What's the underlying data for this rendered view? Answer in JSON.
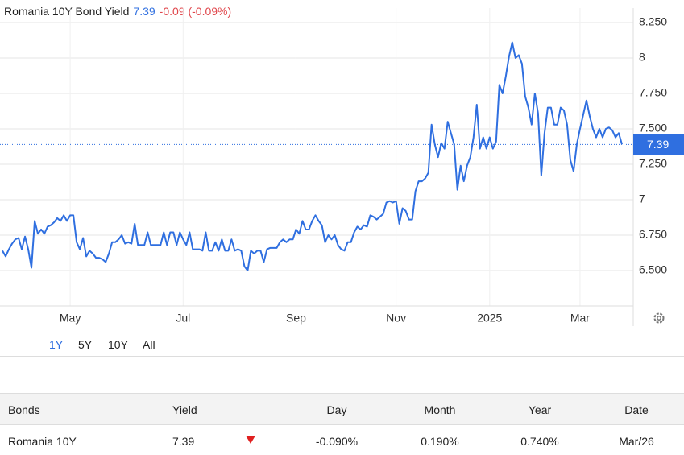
{
  "chart_data": {
    "type": "line",
    "title": "Romania 10Y Bond Yield",
    "price": "7.39",
    "change": "-0.09 (-0.09%)",
    "color": "#2f6fe0",
    "grid": true,
    "ylim": [
      6.25,
      8.352
    ],
    "yticks": [
      {
        "value": 8.25,
        "label": "8.250"
      },
      8,
      {
        "value": 7.75,
        "label": "7.750"
      },
      {
        "value": 7.5,
        "label": "7.500"
      },
      {
        "value": 7.25,
        "label": "7.250"
      },
      7,
      {
        "value": 6.75,
        "label": "6.750"
      },
      {
        "value": 6.5,
        "label": "6.500"
      }
    ],
    "xlim": [
      0,
      192
    ],
    "xticks": [
      {
        "value": 21,
        "label": "May"
      },
      {
        "value": 56,
        "label": "Jul"
      },
      {
        "value": 91,
        "label": "Sep"
      },
      {
        "value": 122,
        "label": "Nov"
      },
      {
        "value": 151,
        "label": "2025"
      },
      {
        "value": 179,
        "label": "Mar"
      }
    ],
    "values": [
      6.64,
      6.6,
      6.65,
      6.69,
      6.72,
      6.73,
      6.65,
      6.74,
      6.65,
      6.52,
      6.85,
      6.76,
      6.79,
      6.76,
      6.81,
      6.82,
      6.84,
      6.87,
      6.85,
      6.89,
      6.85,
      6.89,
      6.89,
      6.7,
      6.65,
      6.73,
      6.6,
      6.64,
      6.62,
      6.59,
      6.59,
      6.58,
      6.56,
      6.62,
      6.7,
      6.7,
      6.72,
      6.75,
      6.69,
      6.7,
      6.69,
      6.83,
      6.68,
      6.68,
      6.68,
      6.77,
      6.68,
      6.68,
      6.68,
      6.68,
      6.77,
      6.68,
      6.77,
      6.77,
      6.68,
      6.77,
      6.72,
      6.68,
      6.77,
      6.65,
      6.65,
      6.65,
      6.64,
      6.77,
      6.64,
      6.64,
      6.7,
      6.64,
      6.72,
      6.64,
      6.64,
      6.72,
      6.64,
      6.65,
      6.64,
      6.53,
      6.5,
      6.64,
      6.62,
      6.64,
      6.64,
      6.56,
      6.65,
      6.66,
      6.66,
      6.66,
      6.7,
      6.72,
      6.7,
      6.72,
      6.72,
      6.79,
      6.76,
      6.85,
      6.79,
      6.79,
      6.85,
      6.89,
      6.85,
      6.82,
      6.7,
      6.75,
      6.72,
      6.75,
      6.68,
      6.65,
      6.64,
      6.7,
      6.7,
      6.77,
      6.81,
      6.79,
      6.82,
      6.81,
      6.89,
      6.88,
      6.86,
      6.88,
      6.9,
      6.98,
      6.99,
      6.98,
      6.99,
      6.83,
      6.94,
      6.92,
      6.86,
      6.86,
      7.06,
      7.13,
      7.13,
      7.15,
      7.19,
      7.53,
      7.39,
      7.3,
      7.4,
      7.36,
      7.55,
      7.47,
      7.39,
      7.07,
      7.24,
      7.13,
      7.24,
      7.3,
      7.44,
      7.67,
      7.36,
      7.44,
      7.36,
      7.44,
      7.36,
      7.41,
      7.81,
      7.75,
      7.87,
      8.01,
      8.11,
      8.0,
      8.02,
      7.96,
      7.73,
      7.65,
      7.53,
      7.75,
      7.61,
      7.17,
      7.47,
      7.65,
      7.65,
      7.53,
      7.53,
      7.65,
      7.63,
      7.53,
      7.28,
      7.2,
      7.39,
      7.5,
      7.6,
      7.7,
      7.59,
      7.5,
      7.44,
      7.5,
      7.44,
      7.5,
      7.51,
      7.49,
      7.44,
      7.47,
      7.39
    ]
  },
  "ranges": [
    "1Y",
    "5Y",
    "10Y",
    "All"
  ],
  "table": {
    "header": [
      "Bonds",
      "Yield",
      "Day",
      "Month",
      "Year",
      "Date"
    ],
    "rows": [
      [
        "Romania 10Y",
        "7.39",
        "-0.090%",
        "0.190%",
        "0.740%",
        "Mar/26"
      ]
    ]
  }
}
